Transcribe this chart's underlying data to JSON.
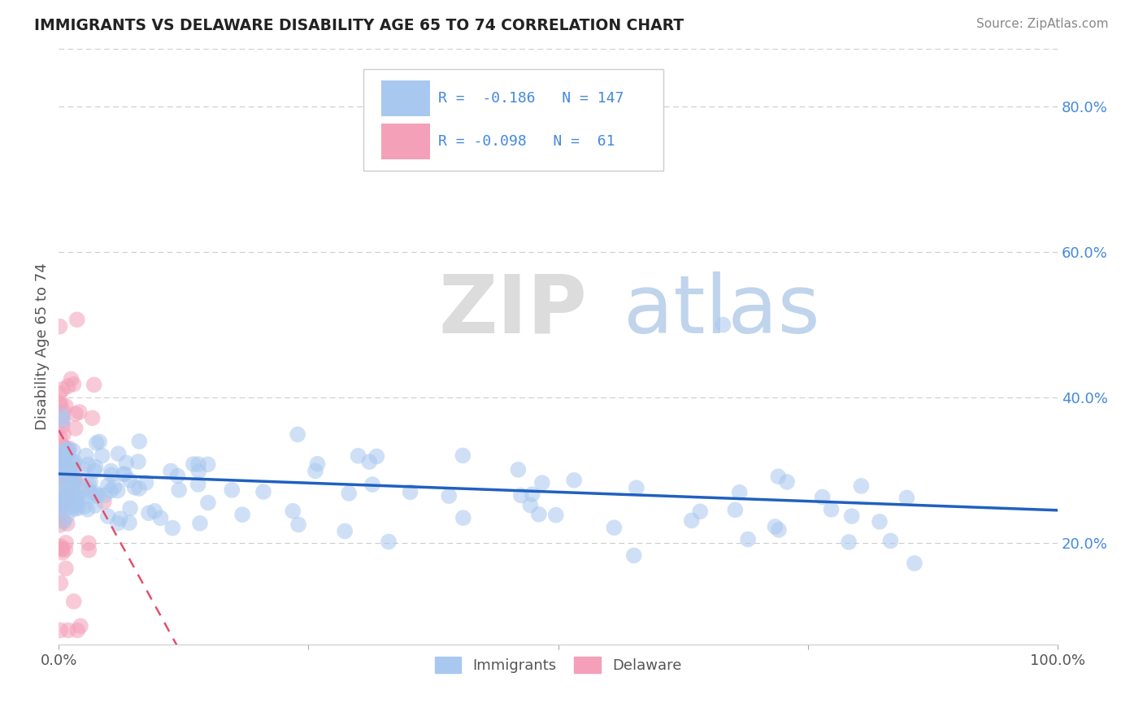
{
  "title": "IMMIGRANTS VS DELAWARE DISABILITY AGE 65 TO 74 CORRELATION CHART",
  "source": "Source: ZipAtlas.com",
  "ylabel": "Disability Age 65 to 74",
  "blue_color": "#A8C8F0",
  "pink_color": "#F4A0B8",
  "blue_line_color": "#2060C0",
  "pink_line_color": "#E05070",
  "ytick_color": "#4488DD",
  "title_color": "#222222",
  "source_color": "#888888",
  "ylabel_color": "#555555",
  "xtick_color": "#555555",
  "xlim": [
    0.0,
    1.0
  ],
  "ylim": [
    0.06,
    0.88
  ],
  "yticks": [
    0.2,
    0.4,
    0.6,
    0.8
  ],
  "ytick_labels": [
    "20.0%",
    "40.0%",
    "60.0%",
    "80.0%"
  ],
  "legend_blue_r": "-0.186",
  "legend_blue_n": "147",
  "legend_pink_r": "-0.098",
  "legend_pink_n": "61",
  "watermark_zip_color": "#DCDCDC",
  "watermark_atlas_color": "#C0D4EC",
  "imm_seed": 42,
  "del_seed": 77
}
